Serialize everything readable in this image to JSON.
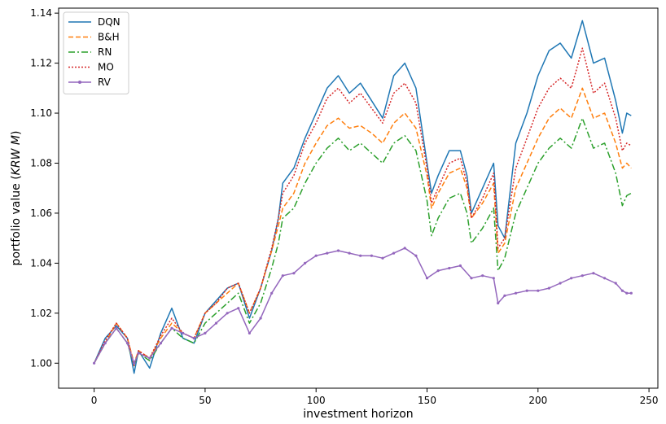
{
  "chart_data": {
    "type": "line",
    "title": "",
    "xlabel": "investment horizon",
    "ylabel_main": "portfolio value (",
    "ylabel_italic": "KRW M",
    "ylabel_end": ")",
    "xlim": [
      -16,
      254
    ],
    "ylim": [
      0.99,
      1.142
    ],
    "xticks": [
      0,
      50,
      100,
      150,
      200,
      250
    ],
    "yticks": [
      1.0,
      1.02,
      1.04,
      1.06,
      1.08,
      1.1,
      1.12,
      1.14
    ],
    "grid": false,
    "legend_position": "top-left",
    "series": [
      {
        "name": "DQN",
        "color": "#1f77b4",
        "dash": "",
        "marker": false,
        "x": [
          0,
          5,
          10,
          15,
          18,
          20,
          25,
          30,
          35,
          40,
          45,
          50,
          55,
          60,
          65,
          70,
          75,
          80,
          83,
          85,
          90,
          95,
          100,
          105,
          110,
          115,
          120,
          125,
          130,
          135,
          140,
          145,
          150,
          152,
          155,
          160,
          165,
          168,
          170,
          175,
          180,
          182,
          185,
          190,
          195,
          200,
          205,
          210,
          215,
          220,
          225,
          230,
          235,
          238,
          240,
          242
        ],
        "y": [
          1.0,
          1.01,
          1.015,
          1.01,
          0.996,
          1.005,
          0.998,
          1.012,
          1.022,
          1.01,
          1.008,
          1.02,
          1.025,
          1.03,
          1.032,
          1.018,
          1.03,
          1.045,
          1.058,
          1.072,
          1.078,
          1.09,
          1.1,
          1.11,
          1.115,
          1.108,
          1.112,
          1.105,
          1.098,
          1.115,
          1.12,
          1.11,
          1.08,
          1.068,
          1.075,
          1.085,
          1.085,
          1.075,
          1.06,
          1.07,
          1.08,
          1.055,
          1.05,
          1.088,
          1.1,
          1.115,
          1.125,
          1.128,
          1.122,
          1.137,
          1.12,
          1.122,
          1.105,
          1.092,
          1.1,
          1.099
        ]
      },
      {
        "name": "B&H",
        "color": "#ff7f0e",
        "dash": "6,3",
        "marker": false,
        "x": [
          0,
          5,
          10,
          15,
          18,
          20,
          25,
          30,
          35,
          40,
          45,
          50,
          55,
          60,
          65,
          70,
          75,
          80,
          83,
          85,
          90,
          95,
          100,
          105,
          110,
          115,
          120,
          125,
          130,
          135,
          140,
          145,
          150,
          152,
          155,
          160,
          165,
          168,
          170,
          175,
          180,
          182,
          185,
          190,
          195,
          200,
          205,
          210,
          215,
          220,
          225,
          230,
          235,
          238,
          240,
          242
        ],
        "y": [
          1.0,
          1.008,
          1.016,
          1.01,
          1.0,
          1.005,
          1.002,
          1.01,
          1.016,
          1.012,
          1.01,
          1.02,
          1.024,
          1.028,
          1.032,
          1.02,
          1.03,
          1.045,
          1.055,
          1.062,
          1.068,
          1.08,
          1.088,
          1.095,
          1.098,
          1.094,
          1.095,
          1.092,
          1.088,
          1.096,
          1.1,
          1.094,
          1.075,
          1.062,
          1.068,
          1.076,
          1.078,
          1.07,
          1.058,
          1.064,
          1.072,
          1.044,
          1.048,
          1.07,
          1.08,
          1.09,
          1.098,
          1.102,
          1.098,
          1.11,
          1.098,
          1.1,
          1.088,
          1.078,
          1.08,
          1.078
        ]
      },
      {
        "name": "RN",
        "color": "#2ca02c",
        "dash": "8,3,2,3",
        "marker": false,
        "x": [
          0,
          5,
          10,
          15,
          18,
          20,
          25,
          30,
          35,
          40,
          45,
          50,
          55,
          60,
          65,
          70,
          75,
          80,
          83,
          85,
          90,
          95,
          100,
          105,
          110,
          115,
          120,
          125,
          130,
          135,
          140,
          145,
          150,
          152,
          155,
          160,
          165,
          168,
          170,
          175,
          180,
          182,
          185,
          190,
          195,
          200,
          205,
          210,
          215,
          220,
          225,
          230,
          235,
          238,
          240,
          242
        ],
        "y": [
          1.0,
          1.008,
          1.014,
          1.008,
          0.999,
          1.004,
          1.001,
          1.008,
          1.014,
          1.01,
          1.008,
          1.016,
          1.02,
          1.024,
          1.028,
          1.016,
          1.024,
          1.038,
          1.048,
          1.058,
          1.062,
          1.072,
          1.08,
          1.086,
          1.09,
          1.085,
          1.088,
          1.084,
          1.08,
          1.088,
          1.091,
          1.085,
          1.065,
          1.051,
          1.058,
          1.066,
          1.068,
          1.06,
          1.048,
          1.054,
          1.062,
          1.037,
          1.042,
          1.06,
          1.07,
          1.08,
          1.086,
          1.09,
          1.086,
          1.098,
          1.086,
          1.088,
          1.076,
          1.063,
          1.067,
          1.068
        ]
      },
      {
        "name": "MO",
        "color": "#d62728",
        "dash": "2,2",
        "marker": false,
        "x": [
          0,
          5,
          10,
          15,
          18,
          20,
          25,
          30,
          35,
          40,
          45,
          50,
          55,
          60,
          65,
          70,
          75,
          80,
          83,
          85,
          90,
          95,
          100,
          105,
          110,
          115,
          120,
          125,
          130,
          135,
          140,
          145,
          150,
          152,
          155,
          160,
          165,
          168,
          170,
          175,
          180,
          182,
          185,
          190,
          195,
          200,
          205,
          210,
          215,
          220,
          225,
          230,
          235,
          238,
          240,
          242
        ],
        "y": [
          1.0,
          1.009,
          1.016,
          1.01,
          0.999,
          1.005,
          1.002,
          1.011,
          1.018,
          1.012,
          1.01,
          1.02,
          1.024,
          1.03,
          1.032,
          1.02,
          1.03,
          1.046,
          1.058,
          1.068,
          1.075,
          1.088,
          1.096,
          1.106,
          1.11,
          1.104,
          1.108,
          1.102,
          1.096,
          1.108,
          1.112,
          1.104,
          1.078,
          1.064,
          1.07,
          1.08,
          1.082,
          1.072,
          1.058,
          1.066,
          1.076,
          1.046,
          1.05,
          1.078,
          1.09,
          1.102,
          1.11,
          1.114,
          1.11,
          1.126,
          1.108,
          1.112,
          1.098,
          1.085,
          1.088,
          1.087
        ]
      },
      {
        "name": "RV",
        "color": "#9467bd",
        "dash": "",
        "marker": true,
        "x": [
          0,
          5,
          10,
          15,
          18,
          20,
          25,
          30,
          35,
          40,
          45,
          50,
          55,
          60,
          65,
          70,
          75,
          80,
          85,
          90,
          95,
          100,
          105,
          110,
          115,
          120,
          125,
          130,
          135,
          140,
          145,
          150,
          155,
          160,
          165,
          170,
          175,
          180,
          182,
          185,
          190,
          195,
          200,
          205,
          210,
          215,
          220,
          225,
          230,
          235,
          238,
          240,
          242
        ],
        "y": [
          1.0,
          1.008,
          1.014,
          1.008,
          1.0,
          1.004,
          1.002,
          1.008,
          1.014,
          1.012,
          1.01,
          1.012,
          1.016,
          1.02,
          1.022,
          1.012,
          1.018,
          1.028,
          1.035,
          1.036,
          1.04,
          1.043,
          1.044,
          1.045,
          1.044,
          1.043,
          1.043,
          1.042,
          1.044,
          1.046,
          1.043,
          1.034,
          1.037,
          1.038,
          1.039,
          1.034,
          1.035,
          1.034,
          1.024,
          1.027,
          1.028,
          1.029,
          1.029,
          1.03,
          1.032,
          1.034,
          1.035,
          1.036,
          1.034,
          1.032,
          1.029,
          1.028,
          1.028
        ]
      }
    ]
  }
}
